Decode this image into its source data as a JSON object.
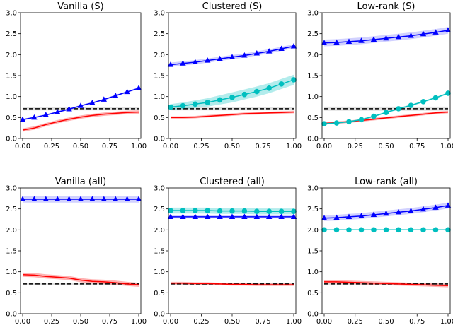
{
  "chart_data": [
    {
      "type": "line",
      "title": "Vanilla (S)",
      "x": [
        0,
        0.1,
        0.2,
        0.3,
        0.4,
        0.5,
        0.6,
        0.7,
        0.8,
        0.9,
        1.0
      ],
      "xlim": [
        0,
        1
      ],
      "ylim": [
        0,
        3
      ],
      "xticks": [
        "0.00",
        "0.25",
        "0.50",
        "0.75",
        "1.00"
      ],
      "yticks": [
        "0.0",
        "0.5",
        "1.0",
        "1.5",
        "2.0",
        "2.5",
        "3.0"
      ],
      "series": [
        {
          "name": "baseline",
          "color": "#000000",
          "style": "dashed",
          "band_color": "#999999",
          "values": [
            0.71,
            0.71,
            0.71,
            0.71,
            0.71,
            0.71,
            0.71,
            0.71,
            0.71,
            0.71,
            0.71
          ],
          "band": [
            0.04,
            0.04,
            0.04,
            0.04,
            0.04,
            0.04,
            0.04,
            0.04,
            0.04,
            0.04,
            0.04
          ]
        },
        {
          "name": "red",
          "color": "#ff0000",
          "style": "solid",
          "band_color": "#ff0000",
          "values": [
            0.2,
            0.25,
            0.33,
            0.4,
            0.46,
            0.51,
            0.55,
            0.58,
            0.6,
            0.62,
            0.63
          ],
          "band": [
            0.04,
            0.04,
            0.04,
            0.04,
            0.04,
            0.04,
            0.04,
            0.04,
            0.04,
            0.04,
            0.04
          ]
        },
        {
          "name": "blue",
          "color": "#0000ff",
          "style": "solid",
          "marker": "triangle",
          "band_color": "#6666ff",
          "values": [
            0.45,
            0.5,
            0.56,
            0.63,
            0.7,
            0.78,
            0.85,
            0.93,
            1.02,
            1.11,
            1.2
          ],
          "band": [
            0.02,
            0.02,
            0.02,
            0.02,
            0.02,
            0.02,
            0.02,
            0.02,
            0.02,
            0.02,
            0.02
          ]
        }
      ]
    },
    {
      "type": "line",
      "title": "Clustered (S)",
      "x": [
        0,
        0.1,
        0.2,
        0.3,
        0.4,
        0.5,
        0.6,
        0.7,
        0.8,
        0.9,
        1.0
      ],
      "xlim": [
        0,
        1
      ],
      "ylim": [
        0,
        3
      ],
      "xticks": [
        "0.00",
        "0.25",
        "0.50",
        "0.75",
        "1.00"
      ],
      "yticks": [
        "0.0",
        "0.5",
        "1.0",
        "1.5",
        "2.0",
        "2.5",
        "3.0"
      ],
      "series": [
        {
          "name": "baseline",
          "color": "#000000",
          "style": "dashed",
          "band_color": "#999999",
          "values": [
            0.71,
            0.71,
            0.71,
            0.71,
            0.71,
            0.71,
            0.71,
            0.71,
            0.71,
            0.71,
            0.71
          ],
          "band": [
            0.04,
            0.04,
            0.04,
            0.04,
            0.04,
            0.04,
            0.04,
            0.04,
            0.04,
            0.04,
            0.04
          ]
        },
        {
          "name": "red",
          "color": "#ff0000",
          "style": "solid",
          "band_color": "#ff0000",
          "values": [
            0.5,
            0.5,
            0.51,
            0.53,
            0.55,
            0.57,
            0.59,
            0.6,
            0.61,
            0.62,
            0.63
          ],
          "band": [
            0.03,
            0.03,
            0.03,
            0.03,
            0.03,
            0.03,
            0.03,
            0.03,
            0.03,
            0.03,
            0.03
          ]
        },
        {
          "name": "cyan",
          "color": "#00bfbf",
          "style": "solid",
          "marker": "circle",
          "band_color": "#00bfbf",
          "values": [
            0.75,
            0.78,
            0.82,
            0.86,
            0.92,
            0.98,
            1.05,
            1.12,
            1.2,
            1.3,
            1.4
          ],
          "band": [
            0.07,
            0.08,
            0.09,
            0.1,
            0.11,
            0.12,
            0.12,
            0.12,
            0.12,
            0.12,
            0.12
          ]
        },
        {
          "name": "blue",
          "color": "#0000ff",
          "style": "solid",
          "marker": "triangle",
          "band_color": "#6666ff",
          "values": [
            1.76,
            1.79,
            1.82,
            1.86,
            1.9,
            1.94,
            1.98,
            2.03,
            2.08,
            2.14,
            2.2
          ],
          "band": [
            0.05,
            0.05,
            0.05,
            0.05,
            0.05,
            0.05,
            0.05,
            0.05,
            0.05,
            0.05,
            0.05
          ]
        }
      ]
    },
    {
      "type": "line",
      "title": "Low-rank (S)",
      "x": [
        0,
        0.1,
        0.2,
        0.3,
        0.4,
        0.5,
        0.6,
        0.7,
        0.8,
        0.9,
        1.0
      ],
      "xlim": [
        0,
        1
      ],
      "ylim": [
        0,
        3
      ],
      "xticks": [
        "0.00",
        "0.25",
        "0.50",
        "0.75",
        "1.00"
      ],
      "yticks": [
        "0.0",
        "0.5",
        "1.0",
        "1.5",
        "2.0",
        "2.5",
        "3.0"
      ],
      "series": [
        {
          "name": "baseline",
          "color": "#000000",
          "style": "dashed",
          "band_color": "#999999",
          "values": [
            0.71,
            0.71,
            0.71,
            0.71,
            0.71,
            0.71,
            0.71,
            0.71,
            0.71,
            0.71,
            0.71
          ],
          "band": [
            0.05,
            0.05,
            0.05,
            0.05,
            0.05,
            0.05,
            0.05,
            0.05,
            0.05,
            0.05,
            0.05
          ]
        },
        {
          "name": "red",
          "color": "#ff0000",
          "style": "solid",
          "band_color": "#ff0000",
          "values": [
            0.36,
            0.38,
            0.4,
            0.43,
            0.46,
            0.49,
            0.52,
            0.55,
            0.58,
            0.61,
            0.63
          ],
          "band": [
            0.03,
            0.03,
            0.03,
            0.03,
            0.03,
            0.03,
            0.03,
            0.03,
            0.03,
            0.03,
            0.03
          ]
        },
        {
          "name": "cyan",
          "color": "#00bfbf",
          "style": "solid",
          "marker": "circle",
          "band_color": "#00bfbf",
          "values": [
            0.35,
            0.37,
            0.4,
            0.45,
            0.53,
            0.62,
            0.71,
            0.79,
            0.88,
            0.97,
            1.08
          ],
          "band": [
            0.02,
            0.02,
            0.02,
            0.02,
            0.02,
            0.02,
            0.02,
            0.02,
            0.02,
            0.02,
            0.02
          ]
        },
        {
          "name": "blue",
          "color": "#0000ff",
          "style": "solid",
          "marker": "triangle",
          "band_color": "#6666ff",
          "values": [
            2.28,
            2.29,
            2.31,
            2.33,
            2.36,
            2.39,
            2.42,
            2.45,
            2.49,
            2.53,
            2.58
          ],
          "band": [
            0.08,
            0.08,
            0.08,
            0.08,
            0.08,
            0.08,
            0.08,
            0.08,
            0.08,
            0.08,
            0.08
          ]
        }
      ]
    },
    {
      "type": "line",
      "title": "Vanilla (all)",
      "x": [
        0,
        0.1,
        0.2,
        0.3,
        0.4,
        0.5,
        0.6,
        0.7,
        0.8,
        0.9,
        1.0
      ],
      "xlim": [
        0,
        1
      ],
      "ylim": [
        0,
        3
      ],
      "xticks": [
        "0.00",
        "0.25",
        "0.50",
        "0.75",
        "1.00"
      ],
      "yticks": [
        "0.0",
        "0.5",
        "1.0",
        "1.5",
        "2.0",
        "2.5",
        "3.0"
      ],
      "series": [
        {
          "name": "baseline",
          "color": "#000000",
          "style": "dashed",
          "band_color": "#999999",
          "values": [
            0.71,
            0.71,
            0.71,
            0.71,
            0.71,
            0.71,
            0.71,
            0.71,
            0.71,
            0.71,
            0.71
          ],
          "band": [
            0.03,
            0.03,
            0.03,
            0.03,
            0.03,
            0.03,
            0.03,
            0.03,
            0.03,
            0.03,
            0.03
          ]
        },
        {
          "name": "red",
          "color": "#ff0000",
          "style": "solid",
          "band_color": "#ff0000",
          "values": [
            0.93,
            0.92,
            0.89,
            0.87,
            0.85,
            0.8,
            0.77,
            0.76,
            0.74,
            0.71,
            0.69
          ],
          "band": [
            0.05,
            0.05,
            0.05,
            0.05,
            0.05,
            0.05,
            0.05,
            0.05,
            0.05,
            0.05,
            0.05
          ]
        },
        {
          "name": "blue",
          "color": "#0000ff",
          "style": "solid",
          "marker": "triangle",
          "band_color": "#6666ff",
          "values": [
            2.73,
            2.73,
            2.73,
            2.73,
            2.73,
            2.73,
            2.73,
            2.73,
            2.73,
            2.73,
            2.73
          ],
          "band": [
            0.08,
            0.08,
            0.08,
            0.08,
            0.08,
            0.08,
            0.08,
            0.08,
            0.08,
            0.08,
            0.08
          ]
        }
      ]
    },
    {
      "type": "line",
      "title": "Clustered (all)",
      "x": [
        0,
        0.1,
        0.2,
        0.3,
        0.4,
        0.5,
        0.6,
        0.7,
        0.8,
        0.9,
        1.0
      ],
      "xlim": [
        0,
        1
      ],
      "ylim": [
        0,
        3
      ],
      "xticks": [
        "0.00",
        "0.25",
        "0.50",
        "0.75",
        "1.00"
      ],
      "yticks": [
        "0.0",
        "0.5",
        "1.0",
        "1.5",
        "2.0",
        "2.5",
        "3.0"
      ],
      "series": [
        {
          "name": "baseline",
          "color": "#000000",
          "style": "dashed",
          "band_color": "#999999",
          "values": [
            0.71,
            0.71,
            0.71,
            0.71,
            0.71,
            0.71,
            0.71,
            0.71,
            0.71,
            0.71,
            0.71
          ],
          "band": [
            0.03,
            0.03,
            0.03,
            0.03,
            0.03,
            0.03,
            0.03,
            0.03,
            0.03,
            0.03,
            0.03
          ]
        },
        {
          "name": "red",
          "color": "#ff0000",
          "style": "solid",
          "band_color": "#ff0000",
          "values": [
            0.73,
            0.73,
            0.72,
            0.72,
            0.71,
            0.7,
            0.7,
            0.69,
            0.69,
            0.69,
            0.69
          ],
          "band": [
            0.03,
            0.03,
            0.03,
            0.03,
            0.03,
            0.03,
            0.03,
            0.03,
            0.03,
            0.03,
            0.03
          ]
        },
        {
          "name": "blue",
          "color": "#0000ff",
          "style": "solid",
          "marker": "triangle",
          "band_color": "#6666ff",
          "values": [
            2.31,
            2.31,
            2.31,
            2.31,
            2.31,
            2.31,
            2.31,
            2.31,
            2.31,
            2.31,
            2.31
          ],
          "band": [
            0.04,
            0.04,
            0.04,
            0.04,
            0.04,
            0.04,
            0.04,
            0.04,
            0.04,
            0.04,
            0.04
          ]
        },
        {
          "name": "cyan",
          "color": "#00bfbf",
          "style": "solid",
          "marker": "circle",
          "band_color": "#00bfbf",
          "values": [
            2.46,
            2.46,
            2.46,
            2.46,
            2.45,
            2.45,
            2.45,
            2.44,
            2.44,
            2.44,
            2.44
          ],
          "band": [
            0.07,
            0.07,
            0.07,
            0.07,
            0.07,
            0.07,
            0.07,
            0.07,
            0.07,
            0.07,
            0.07
          ]
        }
      ]
    },
    {
      "type": "line",
      "title": "Low-rank (all)",
      "x": [
        0,
        0.1,
        0.2,
        0.3,
        0.4,
        0.5,
        0.6,
        0.7,
        0.8,
        0.9,
        1.0
      ],
      "xlim": [
        0,
        1
      ],
      "ylim": [
        0,
        3
      ],
      "xticks": [
        "0.00",
        "0.25",
        "0.50",
        "0.75",
        "1.00"
      ],
      "yticks": [
        "0.0",
        "0.5",
        "1.0",
        "1.5",
        "2.0",
        "2.5",
        "3.0"
      ],
      "series": [
        {
          "name": "baseline",
          "color": "#000000",
          "style": "dashed",
          "band_color": "#999999",
          "values": [
            0.71,
            0.71,
            0.71,
            0.71,
            0.71,
            0.71,
            0.71,
            0.71,
            0.71,
            0.71,
            0.71
          ],
          "band": [
            0.03,
            0.03,
            0.03,
            0.03,
            0.03,
            0.03,
            0.03,
            0.03,
            0.03,
            0.03,
            0.03
          ]
        },
        {
          "name": "red",
          "color": "#ff0000",
          "style": "solid",
          "band_color": "#ff0000",
          "values": [
            0.76,
            0.76,
            0.75,
            0.74,
            0.73,
            0.72,
            0.71,
            0.7,
            0.69,
            0.68,
            0.67
          ],
          "band": [
            0.04,
            0.04,
            0.04,
            0.04,
            0.04,
            0.04,
            0.04,
            0.04,
            0.04,
            0.04,
            0.04
          ]
        },
        {
          "name": "cyan",
          "color": "#00bfbf",
          "style": "solid",
          "marker": "circle",
          "band_color": "#00bfbf",
          "values": [
            2.0,
            2.0,
            2.0,
            2.0,
            2.0,
            2.0,
            2.0,
            2.0,
            2.0,
            2.0,
            2.0
          ],
          "band": [
            0.01,
            0.01,
            0.01,
            0.01,
            0.01,
            0.01,
            0.01,
            0.01,
            0.01,
            0.01,
            0.01
          ]
        },
        {
          "name": "blue",
          "color": "#0000ff",
          "style": "solid",
          "marker": "triangle",
          "band_color": "#6666ff",
          "values": [
            2.28,
            2.29,
            2.31,
            2.33,
            2.36,
            2.39,
            2.42,
            2.45,
            2.49,
            2.53,
            2.58
          ],
          "band": [
            0.07,
            0.07,
            0.07,
            0.07,
            0.07,
            0.07,
            0.07,
            0.07,
            0.07,
            0.07,
            0.07
          ]
        }
      ]
    }
  ]
}
